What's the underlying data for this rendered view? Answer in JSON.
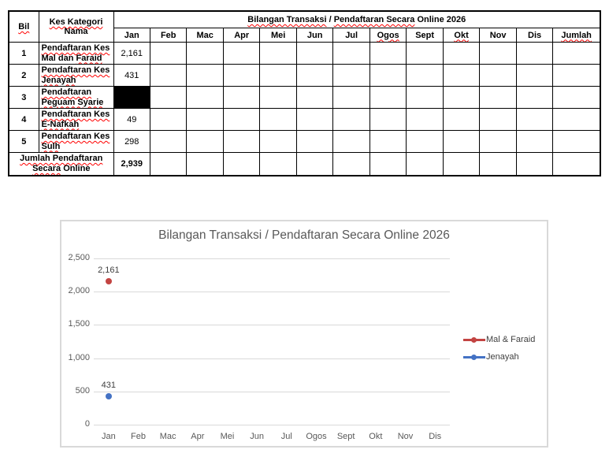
{
  "table": {
    "bil_header": "Bil",
    "category_header_line1": "Kes Kategori",
    "category_header_line2": "Nama",
    "title_marked1": "Bilangan Transaksi",
    "title_plain1": " / ",
    "title_marked2": "Pendaftaran Secara",
    "title_plain2": " Online 2026",
    "months": [
      "Jan",
      "Feb",
      "Mac",
      "Apr",
      "Mei",
      "Jun",
      "Jul",
      "Ogos",
      "Sept",
      "Okt",
      "Nov",
      "Dis",
      "Jumlah"
    ],
    "rows": [
      {
        "bil": "1",
        "l1": "Pendaftaran Kes",
        "l2_pre": "Mal dan ",
        "l2_marked": "Faraid",
        "l2_post": "",
        "jan": "2,161"
      },
      {
        "bil": "2",
        "l1": "Pendaftaran Kes",
        "l2_pre": "",
        "l2_marked": "Jenayah",
        "l2_post": "",
        "jan": "431"
      },
      {
        "bil": "3",
        "l1": "Pendaftaran",
        "l2_pre": "",
        "l2_marked": "Peguam Syarie",
        "l2_post": "",
        "jan": ""
      },
      {
        "bil": "4",
        "l1": "Pendaftaran Kes",
        "l2_pre": "",
        "l2_marked": "E-Nafkah",
        "l2_post": "",
        "jan": "49"
      },
      {
        "bil": "5",
        "l1": "Pendaftaran Kes",
        "l2_pre": "",
        "l2_marked": "Sulh",
        "l2_post": "",
        "jan": "298"
      }
    ],
    "total": {
      "l1": "Jumlah Pendaftaran",
      "l2_marked": "Secara",
      "l2_post": " Online",
      "jan": "2,939"
    }
  },
  "chart_data": {
    "type": "line",
    "title": "Bilangan Transaksi / Pendaftaran Secara Online 2026",
    "categories": [
      "Jan",
      "Feb",
      "Mac",
      "Apr",
      "Mei",
      "Jun",
      "Jul",
      "Ogos",
      "Sept",
      "Okt",
      "Nov",
      "Dis"
    ],
    "series": [
      {
        "name": "Mal & Faraid",
        "color": "#C34442",
        "values": [
          2161,
          null,
          null,
          null,
          null,
          null,
          null,
          null,
          null,
          null,
          null,
          null
        ],
        "labels": [
          "2,161"
        ]
      },
      {
        "name": "Jenayah",
        "color": "#4472C4",
        "values": [
          431,
          null,
          null,
          null,
          null,
          null,
          null,
          null,
          null,
          null,
          null,
          null
        ],
        "labels": [
          "431"
        ]
      }
    ],
    "ylim": [
      0,
      2500
    ],
    "ytick_interval": 500,
    "yticks": [
      "0",
      "500",
      "1,000",
      "1,500",
      "2,000",
      "2,500"
    ],
    "grid": true,
    "legend_position": "right",
    "marker": "circle"
  },
  "colors": {
    "squiggle": "#FF0000",
    "table_border": "#000000",
    "chart_border": "#D9D9D9",
    "gridline": "#D9D9D9",
    "axis_text": "#595959",
    "title_text": "#595959",
    "data_label_text": "#404040"
  }
}
